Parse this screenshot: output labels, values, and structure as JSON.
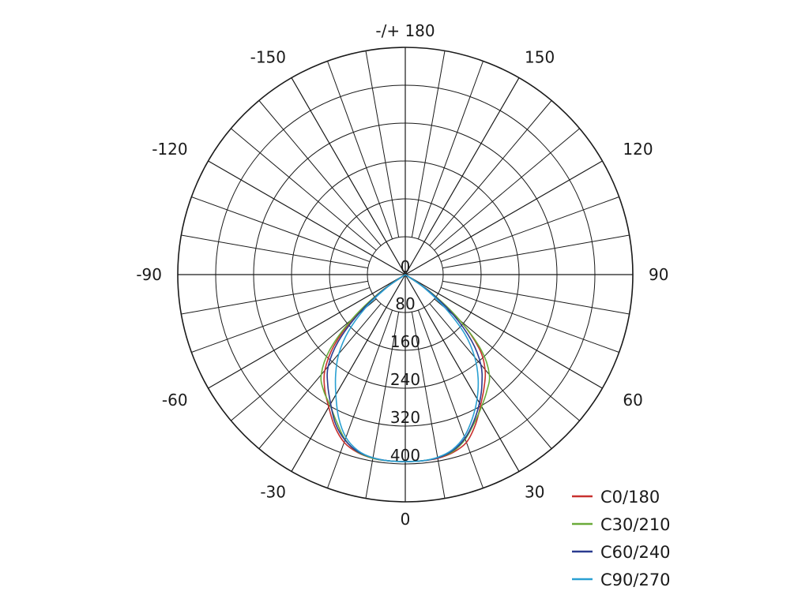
{
  "chart_data": {
    "type": "polar-line",
    "angle_labels": [
      {
        "angle": 0,
        "label": "0"
      },
      {
        "angle": 30,
        "label": "30"
      },
      {
        "angle": 60,
        "label": "60"
      },
      {
        "angle": 90,
        "label": "90"
      },
      {
        "angle": 120,
        "label": "120"
      },
      {
        "angle": 150,
        "label": "150"
      },
      {
        "angle": 180,
        "label": "-/+ 180"
      },
      {
        "angle": -150,
        "label": "-150"
      },
      {
        "angle": -120,
        "label": "-120"
      },
      {
        "angle": -90,
        "label": "-90"
      },
      {
        "angle": -60,
        "label": "-60"
      },
      {
        "angle": -30,
        "label": "-30"
      }
    ],
    "radial_ticks": [
      0,
      80,
      160,
      240,
      320,
      400
    ],
    "radial_range": [
      0,
      480
    ],
    "spoke_step_deg": 10,
    "legend_position": "bottom-right",
    "series": [
      {
        "name": "C0/180",
        "color": "#c8312f",
        "angles": [
          -60,
          -55,
          -50,
          -45,
          -40,
          -35,
          -30,
          -25,
          -20,
          -15,
          -10,
          -5,
          0,
          5,
          10,
          15,
          20,
          25,
          30,
          35,
          40,
          45,
          50,
          55,
          60
        ],
        "values": [
          0,
          62,
          142,
          213,
          264,
          296,
          323,
          353,
          377,
          389,
          394,
          395,
          395,
          395,
          394,
          389,
          377,
          350,
          318,
          290,
          262,
          220,
          150,
          65,
          0
        ]
      },
      {
        "name": "C30/210",
        "color": "#6aab3a",
        "angles": [
          -60,
          -55,
          -50,
          -45,
          -40,
          -35,
          -30,
          -25,
          -20,
          -15,
          -10,
          -5,
          0,
          5,
          10,
          15,
          20,
          25,
          30,
          35,
          40,
          45,
          50,
          55,
          60
        ],
        "values": [
          0,
          66,
          148,
          226,
          276,
          300,
          318,
          343,
          371,
          388,
          394,
          395,
          395,
          395,
          393,
          387,
          370,
          345,
          322,
          300,
          276,
          228,
          150,
          68,
          0
        ]
      },
      {
        "name": "C60/240",
        "color": "#2a3b8f",
        "angles": [
          -60,
          -55,
          -50,
          -45,
          -40,
          -35,
          -30,
          -25,
          -20,
          -15,
          -10,
          -5,
          0,
          5,
          10,
          15,
          20,
          25,
          30,
          35,
          40,
          45,
          50,
          55,
          60
        ],
        "values": [
          0,
          58,
          128,
          200,
          253,
          285,
          315,
          348,
          372,
          387,
          393,
          395,
          395,
          395,
          393,
          385,
          368,
          342,
          313,
          282,
          248,
          198,
          132,
          60,
          0
        ]
      },
      {
        "name": "C90/270",
        "color": "#2aa0d2",
        "angles": [
          -60,
          -55,
          -50,
          -45,
          -40,
          -35,
          -30,
          -25,
          -20,
          -15,
          -10,
          -5,
          0,
          5,
          10,
          15,
          20,
          25,
          30,
          35,
          40,
          45,
          50,
          55,
          60
        ],
        "values": [
          0,
          48,
          110,
          170,
          218,
          256,
          293,
          333,
          366,
          385,
          393,
          395,
          395,
          395,
          392,
          383,
          364,
          335,
          303,
          268,
          228,
          178,
          110,
          48,
          0
        ]
      }
    ]
  }
}
